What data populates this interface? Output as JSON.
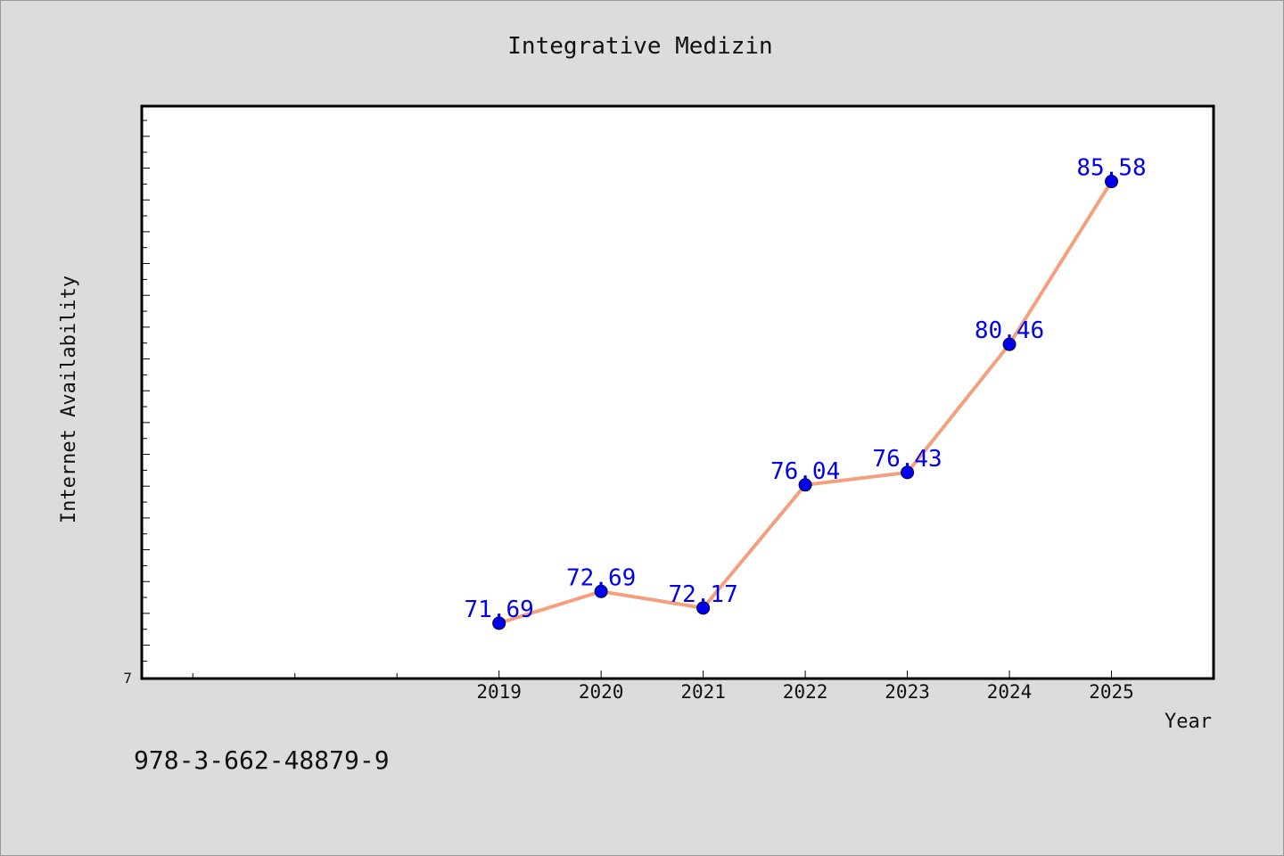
{
  "chart_data": {
    "type": "line",
    "title": "Integrative Medizin",
    "xlabel": "Year",
    "ylabel": "Internet Availability",
    "x": [
      "2019",
      "2020",
      "2021",
      "2022",
      "2023",
      "2024",
      "2025"
    ],
    "series": [
      {
        "values": [
          71.69,
          72.69,
          72.17,
          76.04,
          76.43,
          80.46,
          85.58
        ],
        "data_labels": [
          "71.69",
          "72.69",
          "72.17",
          "76.04",
          "76.43",
          "80.46",
          "85.58"
        ]
      }
    ],
    "y_tick_label": "7",
    "xlim": [
      2015.5,
      2026
    ],
    "ylim": [
      69.95,
      87.95
    ],
    "grid": false,
    "legend": "none",
    "colors": {
      "line": "#f4a07f",
      "marker": "#0000ee",
      "data_label": "#0000ee",
      "plot_background": "#ffffff",
      "page_background": "#dcdcdc"
    }
  },
  "footer": {
    "code": "978-3-662-48879-9"
  }
}
